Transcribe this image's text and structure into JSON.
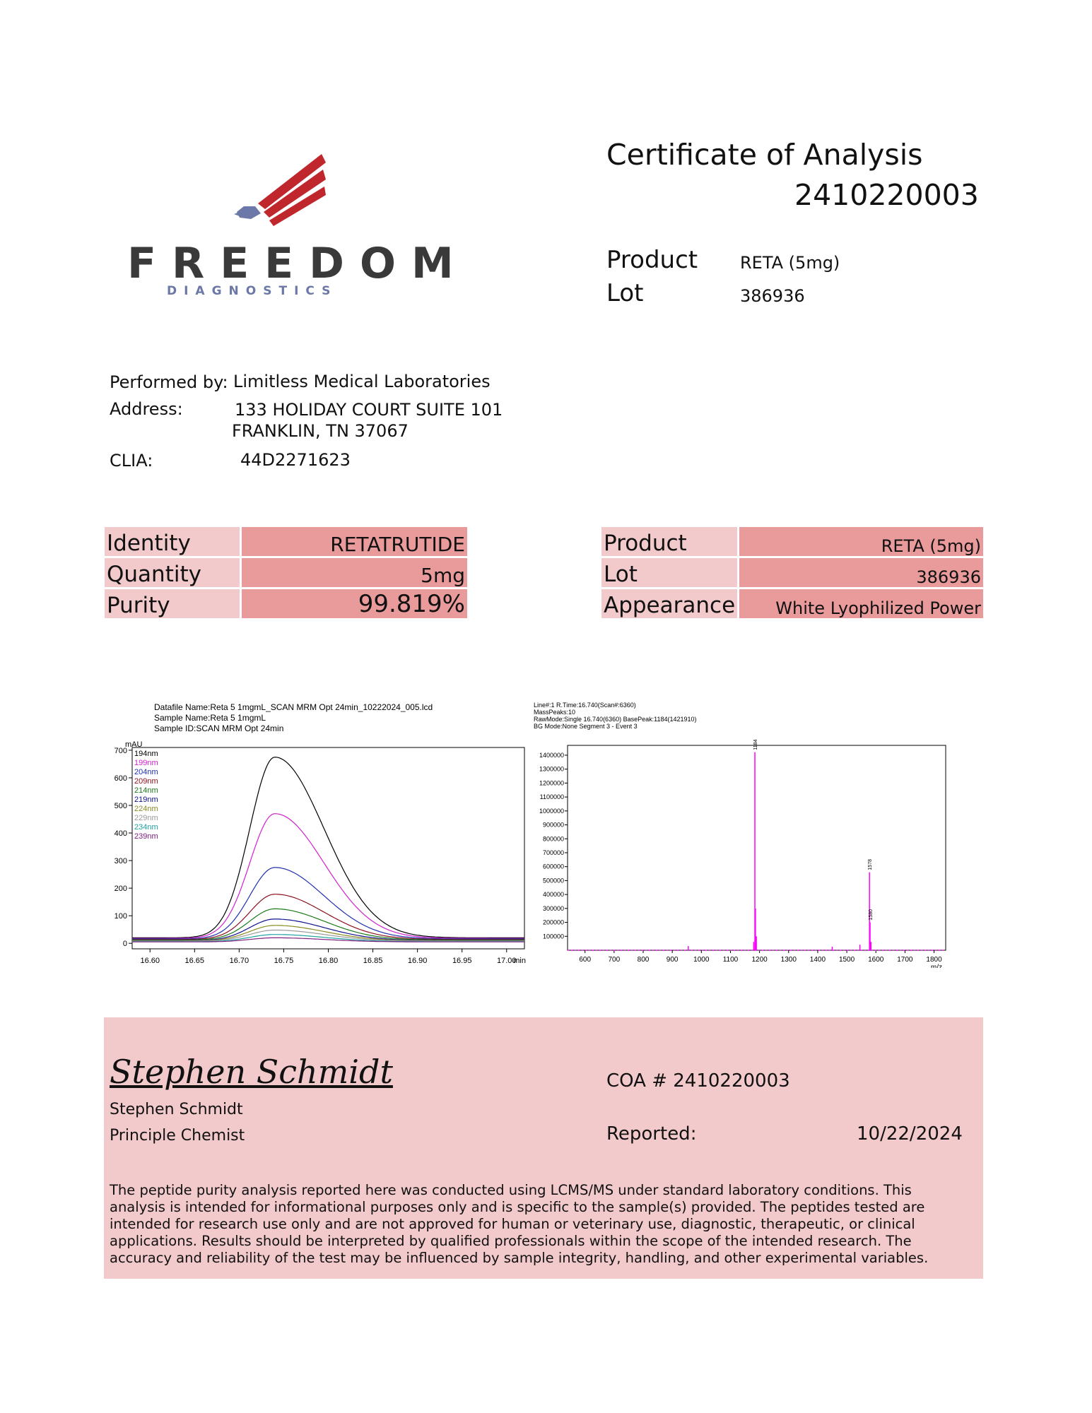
{
  "logo": {
    "brand": "FREEDOM",
    "tagline": "DIAGNOSTICS"
  },
  "header": {
    "title": "Certificate of Analysis",
    "number": "2410220003",
    "product_label": "Product",
    "product_value": "RETA (5mg)",
    "lot_label": "Lot",
    "lot_value": "386936"
  },
  "lab": {
    "performed_by_label": "Performed by:",
    "performed_by_value": "Limitless Medical Laboratories",
    "address_label": "Address:",
    "address_line1": "133 HOLIDAY COURT SUITE 101",
    "address_line2": "FRANKLIN, TN 37067",
    "clia_label": "CLIA:",
    "clia_value": "44D2271623"
  },
  "results_left": [
    {
      "label": "Identity",
      "value": "RETATRUTIDE"
    },
    {
      "label": "Quantity",
      "value": "5mg"
    },
    {
      "label": "Purity",
      "value": "99.819%"
    }
  ],
  "results_right": [
    {
      "label": "Product",
      "value": "RETA (5mg)"
    },
    {
      "label": "Lot",
      "value": "386936"
    },
    {
      "label": "Appearance",
      "value": "White Lyophilized Power"
    }
  ],
  "chart_data": [
    {
      "type": "line",
      "header_lines": [
        "Datafile Name:Reta 5 1mgmL_SCAN MRM Opt 24min_10222024_005.lcd",
        "Sample Name:Reta 5 1mgmL",
        "Sample ID:SCAN MRM Opt 24min"
      ],
      "ylabel": "mAU",
      "xlabel": "min",
      "xlim": [
        16.58,
        17.02
      ],
      "ylim": [
        -20,
        710
      ],
      "x_ticks": [
        "16.60",
        "16.65",
        "16.70",
        "16.75",
        "16.80",
        "16.85",
        "16.90",
        "16.95",
        "17.00"
      ],
      "y_ticks": [
        "0",
        "100",
        "200",
        "300",
        "400",
        "500",
        "600",
        "700"
      ],
      "legend_position": "top-left",
      "series": [
        {
          "name": "194nm",
          "color": "#000000",
          "peak": 675,
          "baseline": 20
        },
        {
          "name": "199nm",
          "color": "#d020d0",
          "peak": 470,
          "baseline": 18
        },
        {
          "name": "204nm",
          "color": "#2030b0",
          "peak": 275,
          "baseline": 16
        },
        {
          "name": "209nm",
          "color": "#8b1020",
          "peak": 178,
          "baseline": 14
        },
        {
          "name": "214nm",
          "color": "#1a7a1a",
          "peak": 125,
          "baseline": 12
        },
        {
          "name": "219nm",
          "color": "#101090",
          "peak": 88,
          "baseline": 10
        },
        {
          "name": "224nm",
          "color": "#8a8a20",
          "peak": 65,
          "baseline": 9
        },
        {
          "name": "229nm",
          "color": "#9a9a9a",
          "peak": 48,
          "baseline": 8
        },
        {
          "name": "234nm",
          "color": "#20a0a0",
          "peak": 32,
          "baseline": 6
        },
        {
          "name": "239nm",
          "color": "#802080",
          "peak": 20,
          "baseline": 5
        }
      ],
      "peak_center": 16.74
    },
    {
      "type": "bar",
      "header_lines": [
        "Line#:1   R.Time:16.740(Scan#:6360)",
        "MassPeaks:10",
        "RawMode:Single 16.740(6360)  BasePeak:1184(1421910)",
        "BG Mode:None  Segment 3 - Event 3"
      ],
      "xlabel": "m/z",
      "xlim": [
        540,
        1840
      ],
      "ylim": [
        0,
        1420000
      ],
      "x_ticks": [
        "600",
        "700",
        "800",
        "900",
        "1000",
        "1100",
        "1200",
        "1300",
        "1400",
        "1500",
        "1600",
        "1700",
        "1800"
      ],
      "y_ticks": [
        "100000",
        "200000",
        "300000",
        "400000",
        "500000",
        "600000",
        "700000",
        "800000",
        "900000",
        "1000000",
        "1100000",
        "1200000",
        "1300000",
        "1400000"
      ],
      "color": "#ff00ff",
      "peaks": [
        {
          "mz": 1184,
          "intensity": 1421910,
          "label": "1184"
        },
        {
          "mz": 1186,
          "intensity": 300000,
          "label": ""
        },
        {
          "mz": 1189,
          "intensity": 100000,
          "label": ""
        },
        {
          "mz": 1578,
          "intensity": 560000,
          "label": "1578"
        },
        {
          "mz": 1580,
          "intensity": 200000,
          "label": "1580"
        },
        {
          "mz": 1583,
          "intensity": 60000,
          "label": ""
        },
        {
          "mz": 955,
          "intensity": 30000,
          "label": ""
        },
        {
          "mz": 1450,
          "intensity": 25000,
          "label": ""
        },
        {
          "mz": 1545,
          "intensity": 40000,
          "label": ""
        },
        {
          "mz": 1180,
          "intensity": 60000,
          "label": ""
        }
      ]
    }
  ],
  "footer": {
    "signature": "Stephen Schmidt",
    "name": "Stephen Schmidt",
    "role": "Principle Chemist",
    "coa_label": "COA # 2410220003",
    "reported_label": "Reported:",
    "reported_date": "10/22/2024",
    "disclaimer": "The peptide purity analysis reported here was conducted using LCMS/MS under standard laboratory conditions. This analysis is intended for informational purposes only and is specific to the sample(s) provided. The peptides tested are intended for research use only and are not approved for human or veterinary use, diagnostic, therapeutic, or clinical applications. Results should be interpreted by qualified professionals within the scope of the intended research. The accuracy and reliability of the test may be influenced by sample integrity, handling, and other experimental variables."
  }
}
